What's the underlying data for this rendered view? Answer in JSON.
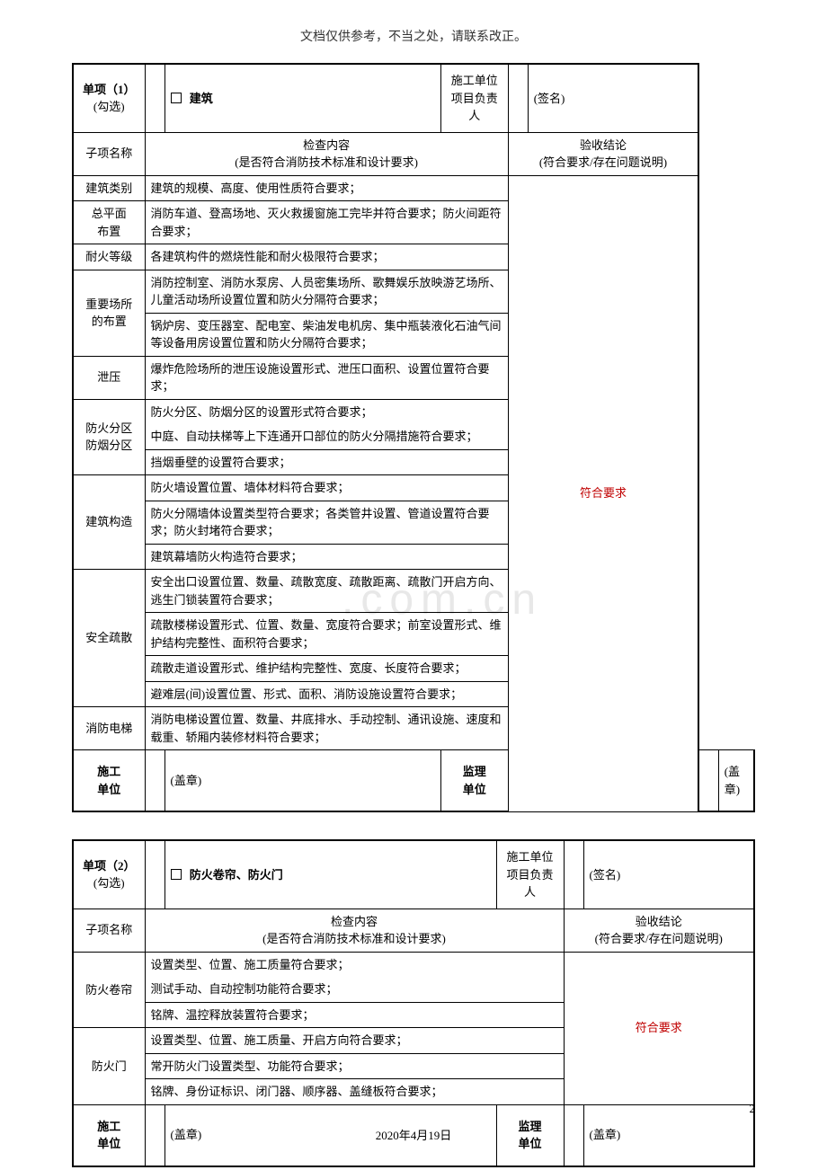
{
  "header_note": "文档仅供参考，不当之处，请联系改正。",
  "watermark": ".com.cn",
  "footer_date": "2020年4月19日",
  "page_number": "2",
  "common": {
    "section_label_prefix": "单项",
    "section_sub": "(勾选)",
    "signer_unit_lbl": "施工单位",
    "signer_pm_lbl": "项目负责人",
    "signature_lbl": "(签名)",
    "subitem_lbl": "子项名称",
    "check_content_lbl": "检查内容",
    "check_content_sub": "(是否符合消防技术标准和设计要求)",
    "result_lbl": "验收结论",
    "result_sub": "(符合要求/存在问题说明)",
    "result_value": "符合要求",
    "construction_unit_lbl": "施工",
    "construction_unit_lbl2": "单位",
    "supervision_unit_lbl": "监理",
    "supervision_unit_lbl2": "单位",
    "stamp_lbl": "(盖章)"
  },
  "section1": {
    "index": "（1）",
    "title": "建筑",
    "rows": [
      {
        "label": "建筑类别",
        "content": "建筑的规模、高度、使用性质符合要求；",
        "rowspan": 1
      }
    ],
    "r_zpm_lbl1": "总平面",
    "r_zpm_lbl2": "布置",
    "r_zpm_c": "消防车道、登高场地、灭火救援窗施工完毕并符合要求；防火间距符合要求；",
    "r_nh_lbl": "耐火等级",
    "r_nh_c": "各建筑构件的燃烧性能和耐火极限符合要求；",
    "r_zycs_lbl1": "重要场所",
    "r_zycs_lbl2": "的布置",
    "r_zycs_c1": "消防控制室、消防水泵房、人员密集场所、歌舞娱乐放映游艺场所、儿童活动场所设置位置和防火分隔符合要求；",
    "r_zycs_c2": "锅炉房、变压器室、配电室、柴油发电机房、集中瓶装液化石油气间等设备用房设置位置和防火分隔符合要求；",
    "r_xy_lbl": "泄压",
    "r_xy_c": "爆炸危险场所的泄压设施设置形式、泄压口面积、设置位置符合要求；",
    "r_fhfq_lbl1": "防火分区",
    "r_fhfq_lbl2": "防烟分区",
    "r_fhfq_c1": "防火分区、防烟分区的设置形式符合要求；",
    "r_fhfq_c2": "中庭、自动扶梯等上下连通开口部位的防火分隔措施符合要求；",
    "r_fhfq_c3": "挡烟垂壁的设置符合要求；",
    "r_jzgz_lbl": "建筑构造",
    "r_jzgz_c1": "防火墙设置位置、墙体材料符合要求；",
    "r_jzgz_c2": "防火分隔墙体设置类型符合要求；各类管井设置、管道设置符合要求；防火封堵符合要求；",
    "r_jzgz_c3": "建筑幕墙防火构造符合要求；",
    "r_aqss_lbl": "安全疏散",
    "r_aqss_c1": "安全出口设置位置、数量、疏散宽度、疏散距离、疏散门开启方向、逃生门锁装置符合要求；",
    "r_aqss_c2": "疏散楼梯设置形式、位置、数量、宽度符合要求；前室设置形式、维护结构完整性、面积符合要求；",
    "r_aqss_c3": "疏散走道设置形式、维护结构完整性、宽度、长度符合要求；",
    "r_aqss_c4": "避难层(间)设置位置、形式、面积、消防设施设置符合要求；",
    "r_xfdt_lbl": "消防电梯",
    "r_xfdt_c": "消防电梯设置位置、数量、井底排水、手动控制、通讯设施、速度和载重、轿厢内装修材料符合要求；"
  },
  "section2": {
    "index": "（2）",
    "title": "防火卷帘、防火门",
    "r_fhjl_lbl": "防火卷帘",
    "r_fhjl_c1": "设置类型、位置、施工质量符合要求；",
    "r_fhjl_c2": "测试手动、自动控制功能符合要求；",
    "r_fhjl_c3": "铭牌、温控释放装置符合要求；",
    "r_fhm_lbl": "防火门",
    "r_fhm_c1": "设置类型、位置、施工质量、开启方向符合要求；",
    "r_fhm_c2": "常开防火门设置类型、功能符合要求；",
    "r_fhm_c3": "铭牌、身份证标识、闭门器、顺序器、盖缝板符合要求；"
  }
}
